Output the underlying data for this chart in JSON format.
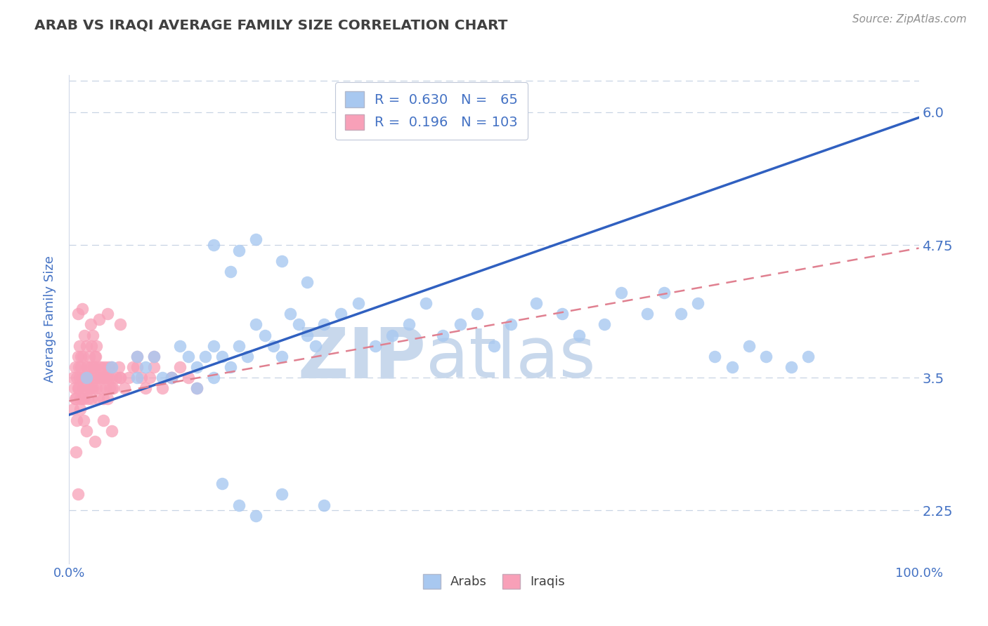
{
  "title": "ARAB VS IRAQI AVERAGE FAMILY SIZE CORRELATION CHART",
  "source": "Source: ZipAtlas.com",
  "ylabel": "Average Family Size",
  "yticks": [
    2.25,
    3.5,
    4.75,
    6.0
  ],
  "xmin": 0.0,
  "xmax": 100.0,
  "ymin": 1.75,
  "ymax": 6.35,
  "arab_color": "#a8c8f0",
  "iraqi_color": "#f8a0b8",
  "arab_line_color": "#3060c0",
  "iraqi_line_color": "#e08090",
  "arab_R": 0.63,
  "arab_N": 65,
  "iraqi_R": 0.196,
  "iraqi_N": 103,
  "title_color": "#404040",
  "source_color": "#909090",
  "axis_label_color": "#4472c4",
  "tick_color": "#4472c4",
  "legend_text_color": "#4472c4",
  "watermark_zip": "ZIP",
  "watermark_atlas": "atlas",
  "watermark_color": "#c8d8ec",
  "grid_color": "#c8d4e4",
  "background_color": "#ffffff",
  "arab_line_x0": 0,
  "arab_line_x1": 100,
  "arab_line_y0": 3.15,
  "arab_line_y1": 5.95,
  "iraqi_line_x0": 0,
  "iraqi_line_x1": 100,
  "iraqi_line_y0": 3.28,
  "iraqi_line_y1": 4.72,
  "arab_scatter_x": [
    2,
    5,
    8,
    9,
    10,
    11,
    13,
    14,
    15,
    16,
    17,
    17,
    18,
    19,
    20,
    21,
    22,
    23,
    24,
    25,
    26,
    27,
    28,
    29,
    30,
    32,
    34,
    36,
    38,
    40,
    42,
    44,
    46,
    48,
    50,
    52,
    55,
    58,
    60,
    63,
    65,
    68,
    70,
    72,
    74,
    76,
    78,
    80,
    82,
    85,
    87,
    20,
    22,
    25,
    30,
    18,
    15,
    12,
    8,
    20,
    17,
    22,
    19,
    25,
    28
  ],
  "arab_scatter_y": [
    3.5,
    3.6,
    3.7,
    3.6,
    3.7,
    3.5,
    3.8,
    3.7,
    3.6,
    3.7,
    3.8,
    3.5,
    3.7,
    3.6,
    3.8,
    3.7,
    4.0,
    3.9,
    3.8,
    3.7,
    4.1,
    4.0,
    3.9,
    3.8,
    4.0,
    4.1,
    4.2,
    3.8,
    3.9,
    4.0,
    4.2,
    3.9,
    4.0,
    4.1,
    3.8,
    4.0,
    4.2,
    4.1,
    3.9,
    4.0,
    4.3,
    4.1,
    4.3,
    4.1,
    4.2,
    3.7,
    3.6,
    3.8,
    3.7,
    3.6,
    3.7,
    2.3,
    2.2,
    2.4,
    2.3,
    2.5,
    3.4,
    3.5,
    3.5,
    4.7,
    4.75,
    4.8,
    4.5,
    4.6,
    4.4
  ],
  "iraqi_scatter_x": [
    0.5,
    0.6,
    0.7,
    0.8,
    0.9,
    1.0,
    1.1,
    1.2,
    1.3,
    1.4,
    1.5,
    1.6,
    1.7,
    1.8,
    1.9,
    2.0,
    2.1,
    2.2,
    2.3,
    2.4,
    2.5,
    2.6,
    2.7,
    2.8,
    2.9,
    3.0,
    3.1,
    3.2,
    3.3,
    3.4,
    3.5,
    3.6,
    3.7,
    3.8,
    3.9,
    4.0,
    4.1,
    4.2,
    4.3,
    4.4,
    4.5,
    4.6,
    4.7,
    4.8,
    4.9,
    5.0,
    5.2,
    5.5,
    5.8,
    6.0,
    6.5,
    7.0,
    7.5,
    8.0,
    8.5,
    9.0,
    9.5,
    10.0,
    11.0,
    12.0,
    13.0,
    14.0,
    15.0,
    1.0,
    1.2,
    1.4,
    1.6,
    1.8,
    2.0,
    2.2,
    2.4,
    2.6,
    2.8,
    3.0,
    3.2,
    0.5,
    0.7,
    0.9,
    1.1,
    1.3,
    1.5,
    1.7,
    2.0,
    2.5,
    3.0,
    4.0,
    5.0,
    6.0,
    8.0,
    10.0,
    12.0,
    1.0,
    1.5,
    2.5,
    3.5,
    4.5,
    6.0,
    0.8,
    1.0,
    2.0,
    3.0,
    4.0,
    5.0
  ],
  "iraqi_scatter_y": [
    3.5,
    3.4,
    3.6,
    3.3,
    3.5,
    3.4,
    3.6,
    3.5,
    3.3,
    3.7,
    3.5,
    3.4,
    3.3,
    3.5,
    3.4,
    3.6,
    3.5,
    3.3,
    3.5,
    3.4,
    3.6,
    3.3,
    3.5,
    3.4,
    3.6,
    3.5,
    3.7,
    3.4,
    3.5,
    3.3,
    3.6,
    3.5,
    3.4,
    3.6,
    3.5,
    3.3,
    3.5,
    3.6,
    3.4,
    3.5,
    3.3,
    3.6,
    3.5,
    3.4,
    3.6,
    3.5,
    3.4,
    3.5,
    3.6,
    3.5,
    3.4,
    3.5,
    3.6,
    3.7,
    3.5,
    3.4,
    3.5,
    3.6,
    3.4,
    3.5,
    3.6,
    3.5,
    3.4,
    3.7,
    3.8,
    3.6,
    3.7,
    3.9,
    3.8,
    3.6,
    3.7,
    3.8,
    3.9,
    3.7,
    3.8,
    3.2,
    3.3,
    3.1,
    3.4,
    3.2,
    3.3,
    3.1,
    3.5,
    3.4,
    3.6,
    3.5,
    3.4,
    3.5,
    3.6,
    3.7,
    3.5,
    4.1,
    4.15,
    4.0,
    4.05,
    4.1,
    4.0,
    2.8,
    2.4,
    3.0,
    2.9,
    3.1,
    3.0
  ]
}
